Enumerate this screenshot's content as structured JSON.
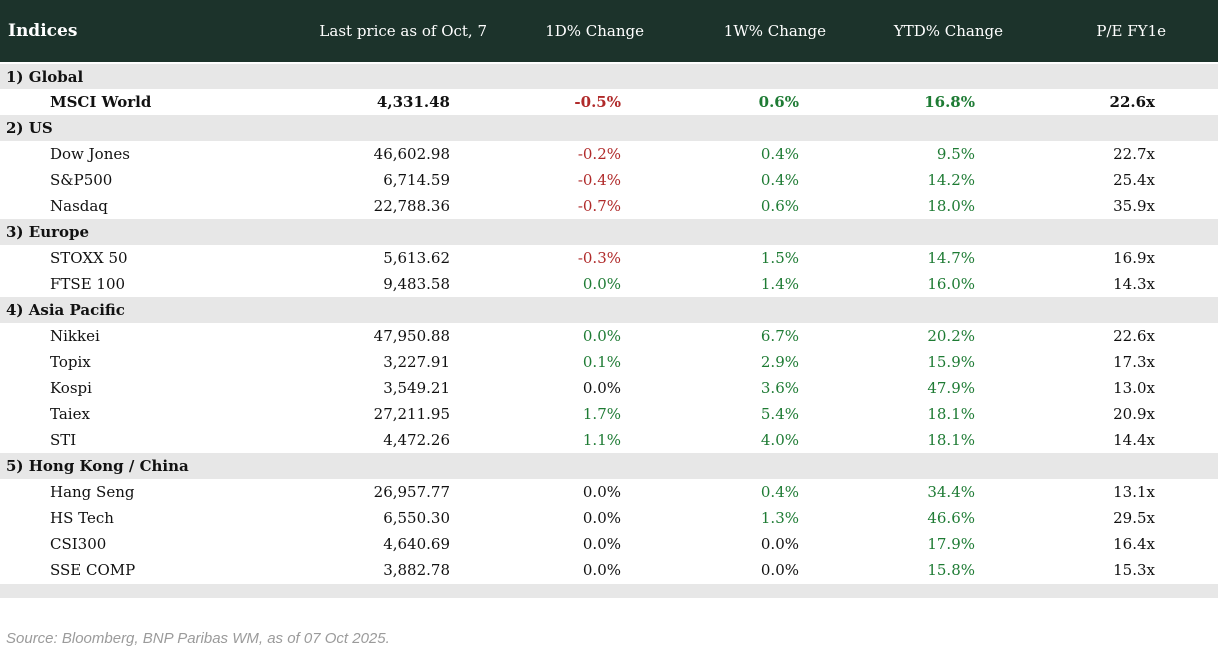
{
  "chart_data": {
    "type": "table",
    "title": "Indices",
    "columns": [
      "Indices",
      "Last price as of Oct, 7",
      "1D% Change",
      "1W% Change",
      "YTD% Change",
      "P/E FY1e"
    ],
    "sections": [
      {
        "label": "1) Global",
        "rows": [
          {
            "name": "MSCI World",
            "bold": true,
            "last_price": "4,331.48",
            "d1": "-0.5%",
            "d1_color": "neg",
            "w1": "0.6%",
            "w1_color": "pos",
            "ytd": "16.8%",
            "ytd_color": "pos",
            "pe": "22.6x"
          }
        ]
      },
      {
        "label": "2) US",
        "rows": [
          {
            "name": "Dow Jones",
            "bold": false,
            "last_price": "46,602.98",
            "d1": "-0.2%",
            "d1_color": "neg",
            "w1": "0.4%",
            "w1_color": "pos",
            "ytd": "9.5%",
            "ytd_color": "pos",
            "pe": "22.7x"
          },
          {
            "name": "S&P500",
            "bold": false,
            "last_price": "6,714.59",
            "d1": "-0.4%",
            "d1_color": "neg",
            "w1": "0.4%",
            "w1_color": "pos",
            "ytd": "14.2%",
            "ytd_color": "pos",
            "pe": "25.4x"
          },
          {
            "name": "Nasdaq",
            "bold": false,
            "last_price": "22,788.36",
            "d1": "-0.7%",
            "d1_color": "neg",
            "w1": "0.6%",
            "w1_color": "pos",
            "ytd": "18.0%",
            "ytd_color": "pos",
            "pe": "35.9x"
          }
        ]
      },
      {
        "label": "3) Europe",
        "rows": [
          {
            "name": "STOXX 50",
            "bold": false,
            "last_price": "5,613.62",
            "d1": "-0.3%",
            "d1_color": "neg",
            "w1": "1.5%",
            "w1_color": "pos",
            "ytd": "14.7%",
            "ytd_color": "pos",
            "pe": "16.9x"
          },
          {
            "name": "FTSE 100",
            "bold": false,
            "last_price": "9,483.58",
            "d1": "0.0%",
            "d1_color": "pos",
            "w1": "1.4%",
            "w1_color": "pos",
            "ytd": "16.0%",
            "ytd_color": "pos",
            "pe": "14.3x"
          }
        ]
      },
      {
        "label": "4) Asia Pacific",
        "rows": [
          {
            "name": "Nikkei",
            "bold": false,
            "last_price": "47,950.88",
            "d1": "0.0%",
            "d1_color": "pos",
            "w1": "6.7%",
            "w1_color": "pos",
            "ytd": "20.2%",
            "ytd_color": "pos",
            "pe": "22.6x"
          },
          {
            "name": "Topix",
            "bold": false,
            "last_price": "3,227.91",
            "d1": "0.1%",
            "d1_color": "pos",
            "w1": "2.9%",
            "w1_color": "pos",
            "ytd": "15.9%",
            "ytd_color": "pos",
            "pe": "17.3x"
          },
          {
            "name": "Kospi",
            "bold": false,
            "last_price": "3,549.21",
            "d1": "0.0%",
            "d1_color": "neutral",
            "w1": "3.6%",
            "w1_color": "pos",
            "ytd": "47.9%",
            "ytd_color": "pos",
            "pe": "13.0x"
          },
          {
            "name": "Taiex",
            "bold": false,
            "last_price": "27,211.95",
            "d1": "1.7%",
            "d1_color": "pos",
            "w1": "5.4%",
            "w1_color": "pos",
            "ytd": "18.1%",
            "ytd_color": "pos",
            "pe": "20.9x"
          },
          {
            "name": "STI",
            "bold": false,
            "last_price": "4,472.26",
            "d1": "1.1%",
            "d1_color": "pos",
            "w1": "4.0%",
            "w1_color": "pos",
            "ytd": "18.1%",
            "ytd_color": "pos",
            "pe": "14.4x"
          }
        ]
      },
      {
        "label": "5) Hong Kong / China",
        "rows": [
          {
            "name": "Hang Seng",
            "bold": false,
            "last_price": "26,957.77",
            "d1": "0.0%",
            "d1_color": "neutral",
            "w1": "0.4%",
            "w1_color": "pos",
            "ytd": "34.4%",
            "ytd_color": "pos",
            "pe": "13.1x"
          },
          {
            "name": "HS Tech",
            "bold": false,
            "last_price": "6,550.30",
            "d1": "0.0%",
            "d1_color": "neutral",
            "w1": "1.3%",
            "w1_color": "pos",
            "ytd": "46.6%",
            "ytd_color": "pos",
            "pe": "29.5x"
          },
          {
            "name": "CSI300",
            "bold": false,
            "last_price": "4,640.69",
            "d1": "0.0%",
            "d1_color": "neutral",
            "w1": "0.0%",
            "w1_color": "neutral",
            "ytd": "17.9%",
            "ytd_color": "pos",
            "pe": "16.4x"
          },
          {
            "name": "SSE COMP",
            "bold": false,
            "last_price": "3,882.78",
            "d1": "0.0%",
            "d1_color": "neutral",
            "w1": "0.0%",
            "w1_color": "neutral",
            "ytd": "15.8%",
            "ytd_color": "pos",
            "pe": "15.3x"
          }
        ]
      }
    ],
    "source": "Source: Bloomberg, BNP Paribas WM, as of 07 Oct 2025."
  },
  "colors": {
    "header_bg": "#1c332b",
    "section_bg": "#e7e7e7",
    "positive": "#1e7b34",
    "negative": "#b02a2a",
    "neutral": "#111111",
    "source_text": "#9b9b9b"
  }
}
